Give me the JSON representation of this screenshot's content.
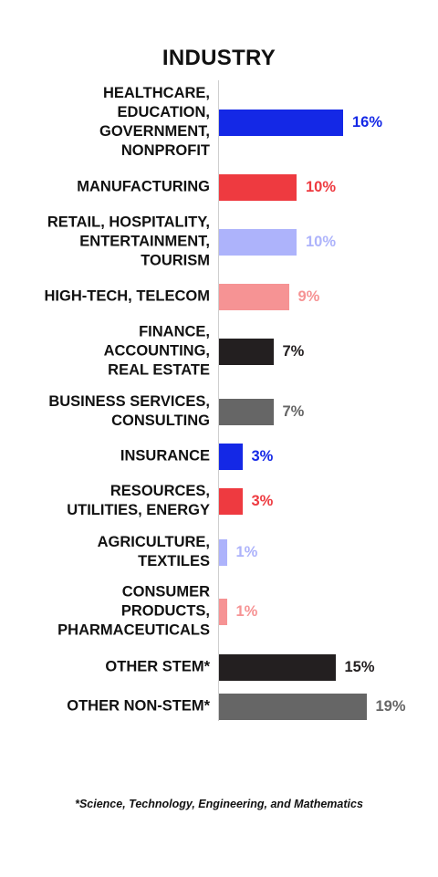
{
  "chart_data": {
    "type": "bar",
    "orientation": "horizontal",
    "title": "INDUSTRY",
    "categories": [
      "HEALTHCARE,\nEDUCATION,\nGOVERNMENT,\nNONPROFIT",
      "MANUFACTURING",
      "RETAIL, HOSPITALITY,\nENTERTAINMENT,\nTOURISM",
      "HIGH-TECH, TELECOM",
      "FINANCE,\nACCOUNTING,\nREAL ESTATE",
      "BUSINESS SERVICES,\nCONSULTING",
      "INSURANCE",
      "RESOURCES,\nUTILITIES, ENERGY",
      "AGRICULTURE,\nTEXTILES",
      "CONSUMER\nPRODUCTS,\nPHARMACEUTICALS",
      "OTHER STEM*",
      "OTHER NON-STEM*"
    ],
    "values": [
      16,
      10,
      10,
      9,
      7,
      7,
      3,
      3,
      1,
      1,
      15,
      19
    ],
    "value_labels": [
      "16%",
      "10%",
      "10%",
      "9%",
      "7%",
      "7%",
      "3%",
      "3%",
      "1%",
      "1%",
      "15%",
      "19%"
    ],
    "colors": [
      "#1428e6",
      "#ee3a40",
      "#adb3fb",
      "#f69394",
      "#231f20",
      "#666666",
      "#1428e6",
      "#ee3a40",
      "#adb3fb",
      "#f69394",
      "#231f20",
      "#666666"
    ],
    "unit": "%",
    "xlim": [
      0,
      19
    ],
    "grid": false,
    "legend": "none"
  },
  "footnote": "*Science, Technology, Engineering, and Mathematics"
}
